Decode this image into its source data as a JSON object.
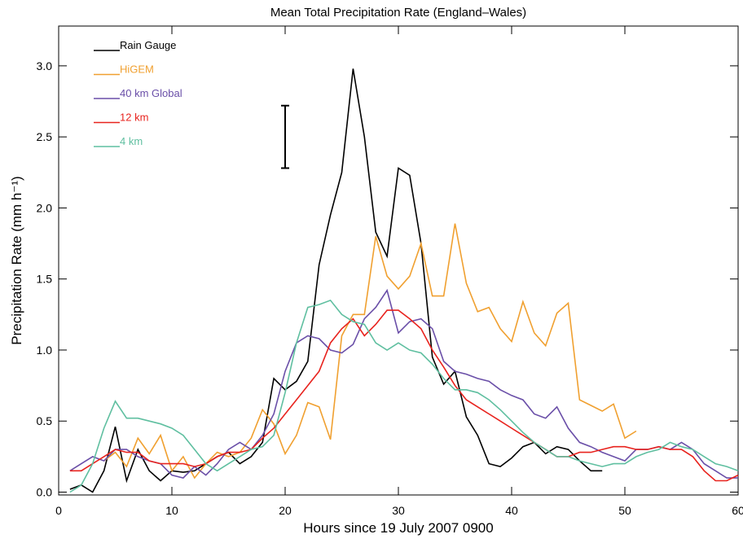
{
  "chart_data": {
    "type": "line",
    "title": "Mean Total Precipitation Rate (England–Wales)",
    "xlabel": "Hours since 19 July 2007 0900",
    "ylabel": "Precipitation Rate (mm h⁻¹)",
    "x": [
      1,
      2,
      3,
      4,
      5,
      6,
      7,
      8,
      9,
      10,
      11,
      12,
      13,
      14,
      15,
      16,
      17,
      18,
      19,
      20,
      21,
      22,
      23,
      24,
      25,
      26,
      27,
      28,
      29,
      30,
      31,
      32,
      33,
      34,
      35,
      36,
      37,
      38,
      39,
      40,
      41,
      42,
      43,
      44,
      45,
      46,
      47,
      48,
      49,
      50,
      51,
      52,
      53,
      54,
      55,
      56,
      57,
      58,
      59,
      60
    ],
    "series": [
      {
        "name": "Rain Gauge",
        "color": "#000000",
        "values": [
          0.02,
          0.05,
          0.0,
          0.15,
          0.46,
          0.08,
          0.3,
          0.15,
          0.08,
          0.15,
          0.14,
          0.15,
          0.2,
          0.25,
          0.28,
          0.2,
          0.25,
          0.35,
          0.8,
          0.72,
          0.78,
          0.92,
          1.6,
          1.95,
          2.25,
          2.98,
          2.5,
          1.83,
          1.66,
          2.28,
          2.23,
          1.75,
          0.95,
          0.76,
          0.85,
          0.53,
          0.4,
          0.2,
          0.18,
          0.24,
          0.32,
          0.35,
          0.27,
          0.32,
          0.3,
          0.22,
          0.15,
          0.15,
          null,
          null,
          null,
          null,
          null,
          null,
          null,
          null,
          null,
          null,
          null,
          null
        ]
      },
      {
        "name": "HiGEM",
        "color": "#f0a030",
        "values": [
          null,
          null,
          null,
          0.22,
          0.28,
          0.18,
          0.38,
          0.27,
          0.4,
          0.15,
          0.25,
          0.1,
          0.2,
          0.28,
          0.25,
          0.28,
          0.38,
          0.58,
          0.48,
          0.27,
          0.4,
          0.63,
          0.6,
          0.37,
          1.1,
          1.25,
          1.25,
          1.8,
          1.52,
          1.43,
          1.52,
          1.75,
          1.38,
          1.38,
          1.89,
          1.47,
          1.27,
          1.3,
          1.15,
          1.06,
          1.34,
          1.12,
          1.03,
          1.26,
          1.33,
          0.65,
          0.61,
          0.57,
          0.62,
          0.38,
          0.43,
          null,
          null,
          null,
          null,
          null,
          null,
          null,
          null,
          null
        ]
      },
      {
        "name": "40 km  Global",
        "color": "#6a4fa8",
        "values": [
          0.15,
          0.2,
          0.25,
          0.22,
          0.3,
          0.3,
          0.25,
          0.22,
          0.2,
          0.12,
          0.1,
          0.18,
          0.12,
          0.2,
          0.3,
          0.35,
          0.3,
          0.4,
          0.55,
          0.85,
          1.05,
          1.1,
          1.08,
          1.0,
          0.98,
          1.04,
          1.22,
          1.3,
          1.42,
          1.12,
          1.2,
          1.22,
          1.15,
          0.92,
          0.85,
          0.83,
          0.8,
          0.78,
          0.72,
          0.68,
          0.65,
          0.55,
          0.52,
          0.6,
          0.45,
          0.35,
          0.32,
          0.28,
          0.25,
          0.22,
          0.3,
          0.3,
          0.32,
          0.3,
          0.35,
          0.3,
          0.2,
          0.15,
          0.1,
          0.1
        ]
      },
      {
        "name": "12 km",
        "color": "#e8231e",
        "values": [
          0.15,
          0.15,
          0.2,
          0.25,
          0.3,
          0.28,
          0.28,
          0.22,
          0.2,
          0.2,
          0.2,
          0.18,
          0.2,
          0.25,
          0.28,
          0.28,
          0.3,
          0.38,
          0.45,
          0.55,
          0.65,
          0.75,
          0.85,
          1.05,
          1.15,
          1.22,
          1.1,
          1.18,
          1.28,
          1.28,
          1.22,
          1.15,
          1.0,
          0.88,
          0.75,
          0.65,
          0.6,
          0.55,
          0.5,
          0.45,
          0.4,
          0.35,
          0.3,
          0.25,
          0.25,
          0.28,
          0.28,
          0.3,
          0.32,
          0.32,
          0.3,
          0.3,
          0.32,
          0.3,
          0.3,
          0.25,
          0.15,
          0.08,
          0.08,
          0.12
        ]
      },
      {
        "name": "4 km",
        "color": "#5fbfa0",
        "values": [
          0.0,
          0.05,
          0.2,
          0.45,
          0.64,
          0.52,
          0.52,
          0.5,
          0.48,
          0.45,
          0.4,
          0.3,
          0.2,
          0.15,
          0.2,
          0.25,
          0.3,
          0.32,
          0.4,
          0.7,
          1.05,
          1.3,
          1.32,
          1.35,
          1.25,
          1.2,
          1.18,
          1.05,
          1.0,
          1.05,
          1.0,
          0.98,
          0.9,
          0.8,
          0.72,
          0.72,
          0.7,
          0.65,
          0.58,
          0.5,
          0.42,
          0.35,
          0.3,
          0.25,
          0.25,
          0.22,
          0.2,
          0.18,
          0.2,
          0.2,
          0.25,
          0.28,
          0.3,
          0.35,
          0.32,
          0.3,
          0.25,
          0.2,
          0.18,
          0.15
        ]
      }
    ],
    "error_bar": {
      "x": 20,
      "y": 2.5,
      "error": 0.22
    },
    "xlim": [
      0,
      60
    ],
    "xticks": [
      0,
      10,
      20,
      30,
      40,
      50,
      60
    ],
    "ylim": [
      -0.02,
      3.28
    ],
    "yticks": [
      {
        "value": 0,
        "label": "0.0"
      },
      0.5,
      {
        "value": 1,
        "label": "1.0"
      },
      1.5,
      {
        "value": 2,
        "label": "2.0"
      },
      2.5,
      {
        "value": 3,
        "label": "3.0"
      }
    ],
    "legend": "top-left"
  }
}
